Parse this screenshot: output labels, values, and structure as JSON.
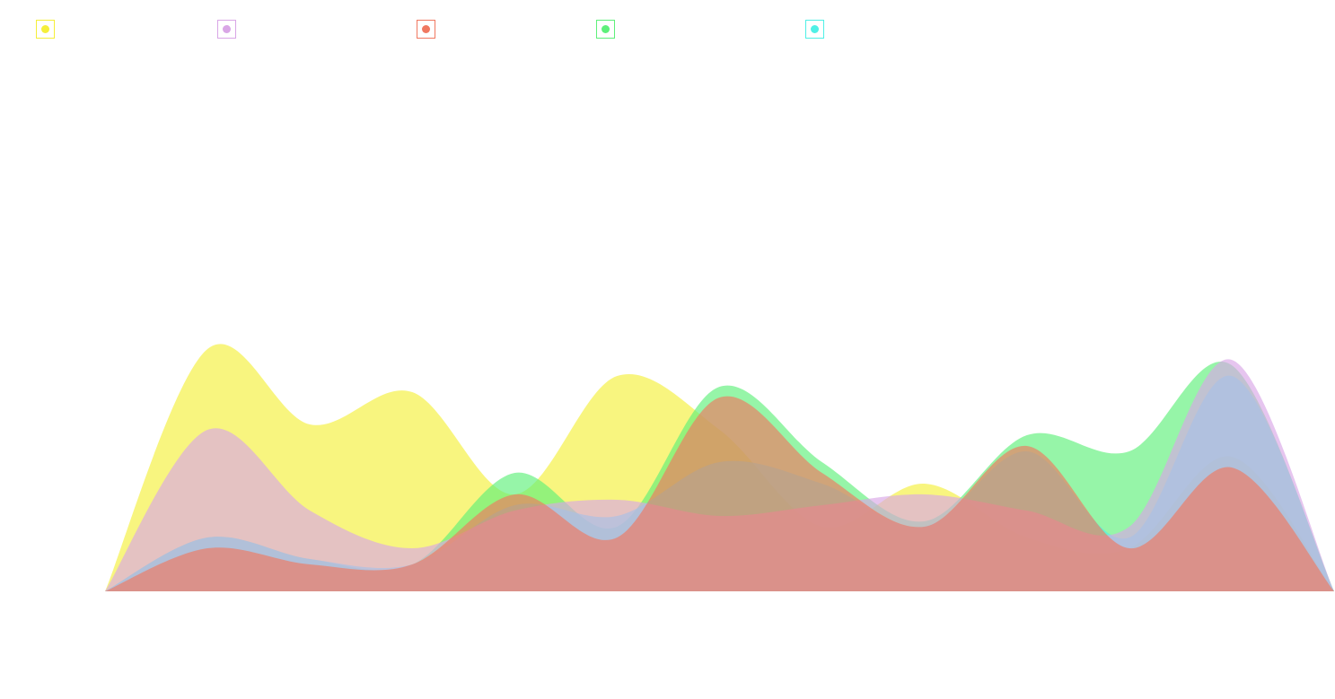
{
  "chart_data": {
    "type": "area",
    "categories": [
      null,
      null,
      null,
      null,
      null,
      null,
      null,
      null,
      null,
      null,
      null,
      null,
      null
    ],
    "series": [
      {
        "color": "#f5ef3a",
        "values": [
          0,
          45,
          31,
          37,
          18,
          40,
          30,
          12,
          20,
          10,
          8,
          25,
          0
        ]
      },
      {
        "color": "#d9a6e6",
        "values": [
          0,
          30,
          15,
          8,
          15,
          17,
          14,
          16,
          18,
          15,
          12,
          43,
          0
        ]
      },
      {
        "color": "#f07860",
        "values": [
          0,
          8,
          5,
          5,
          18,
          10,
          36,
          22,
          12,
          27,
          8,
          23,
          0
        ]
      },
      {
        "color": "#5ef07a",
        "values": [
          0,
          10,
          6,
          5,
          22,
          12,
          38,
          24,
          13,
          29,
          26,
          42,
          0
        ]
      },
      {
        "color": "#4ff0e6",
        "values": [
          0,
          10,
          6,
          5,
          16,
          14,
          24,
          20,
          12,
          26,
          10,
          40,
          0
        ]
      }
    ],
    "ylim": [
      0,
      100
    ]
  }
}
